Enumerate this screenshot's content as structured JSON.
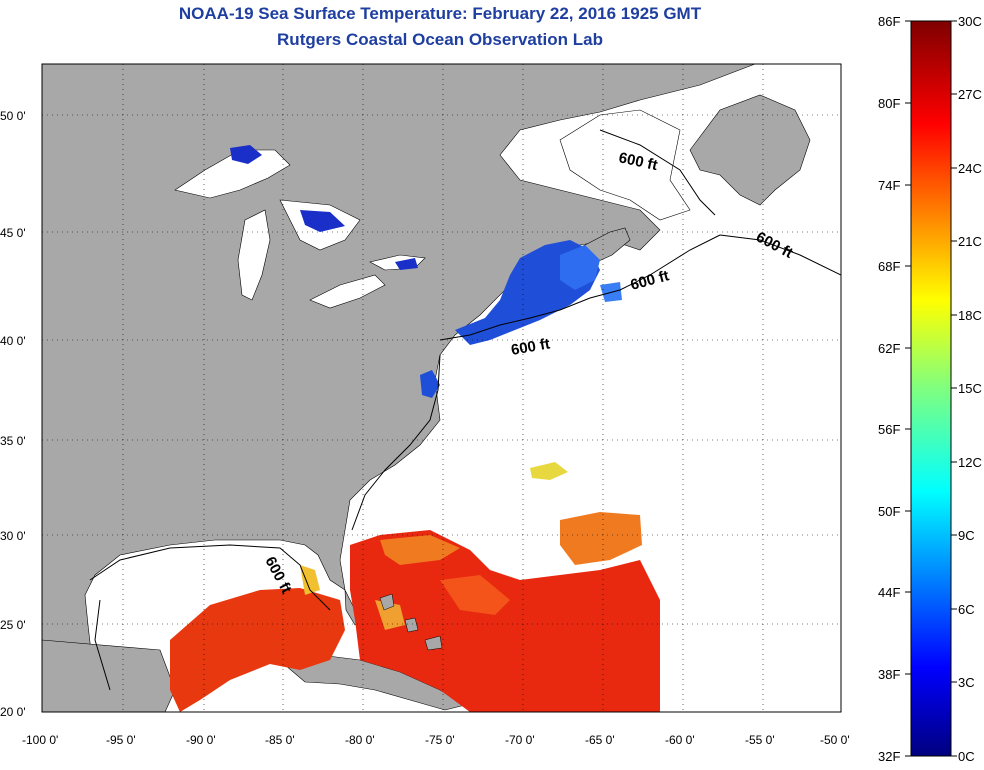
{
  "header": {
    "title": "NOAA-19 Sea Surface Temperature:  February 22, 2016 1925 GMT",
    "subtitle": "Rutgers Coastal Ocean Observation Lab"
  },
  "map": {
    "lat_labels": [
      "50 0'",
      "45 0'",
      "40 0'",
      "35 0'",
      "30 0'",
      "25 0'",
      "20 0'"
    ],
    "lon_labels": [
      "-100 0'",
      "-95 0'",
      "-90 0'",
      "-85 0'",
      "-80 0'",
      "-75 0'",
      "-70 0'",
      "-65 0'",
      "-60 0'",
      "-55 0'",
      "-50 0'"
    ],
    "isobath_labels": [
      "600 ft",
      "600 ft",
      "600 ft",
      "600 ft",
      "600 ft"
    ],
    "colors": {
      "land": "#a8a8a8",
      "cloud_mask": "#ffffff",
      "cold_water": "#1f4fd8",
      "warm_water": "#e8280f"
    }
  },
  "colorbar": {
    "fahrenheit": [
      "86F",
      "80F",
      "74F",
      "68F",
      "62F",
      "56F",
      "50F",
      "44F",
      "38F",
      "32F"
    ],
    "celsius": [
      "30C",
      "27C",
      "24C",
      "21C",
      "18C",
      "15C",
      "12C",
      "9C",
      "6C",
      "3C",
      "0C"
    ]
  }
}
